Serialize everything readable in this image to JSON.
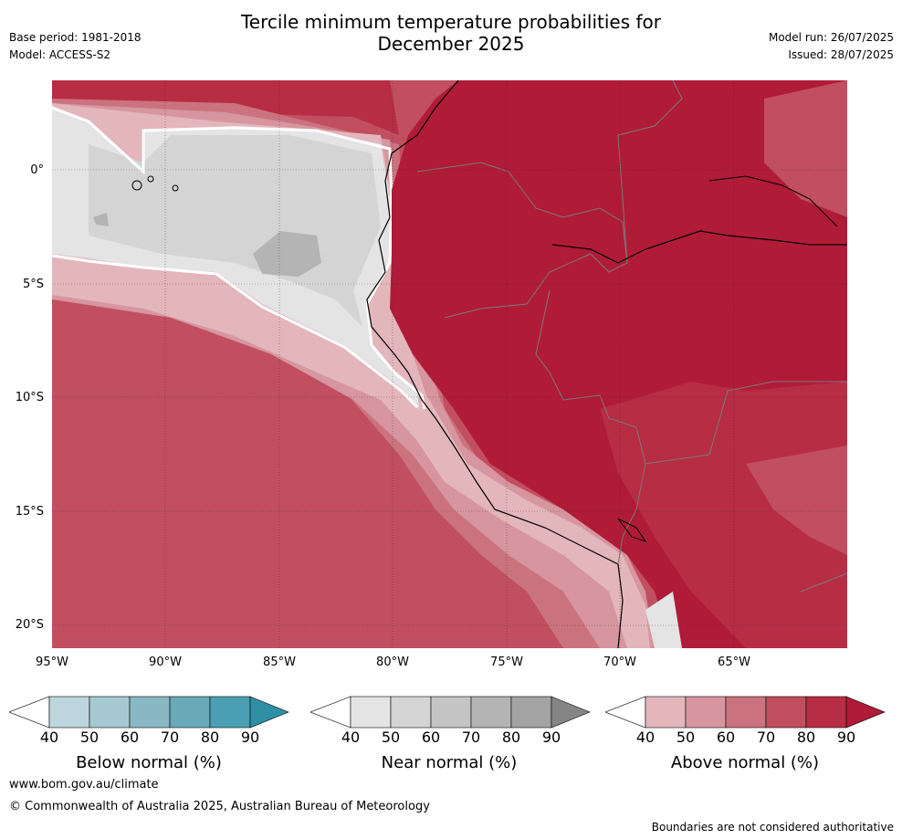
{
  "title_line1": "Tercile minimum temperature probabilities for",
  "title_line2": "December 2025",
  "base_period": "Base period: 1981-2018",
  "model": "Model: ACCESS-S2",
  "model_run": "Model run: 26/07/2025",
  "issued": "Issued: 28/07/2025",
  "lat_labels": [
    "0°",
    "5°S",
    "10°S",
    "15°S",
    "20°S"
  ],
  "lon_labels": [
    "95°W",
    "90°W",
    "85°W",
    "80°W",
    "75°W",
    "70°W",
    "65°W"
  ],
  "colorbars": {
    "below": {
      "label": "Below normal (%)",
      "ticks": [
        "40",
        "50",
        "60",
        "70",
        "80",
        "90"
      ],
      "colors": [
        "#ffffff",
        "#bdd6dd",
        "#a6c9d1",
        "#89b8c4",
        "#6aa9b7",
        "#4aa0b2",
        "#2f8fa4"
      ]
    },
    "near": {
      "label": "Near normal (%)",
      "ticks": [
        "40",
        "50",
        "60",
        "70",
        "80",
        "90"
      ],
      "colors": [
        "#ffffff",
        "#e4e4e4",
        "#d4d4d4",
        "#c4c4c4",
        "#b4b4b4",
        "#a3a3a3",
        "#858585"
      ]
    },
    "above": {
      "label": "Above normal (%)",
      "ticks": [
        "40",
        "50",
        "60",
        "70",
        "80",
        "90"
      ],
      "colors": [
        "#ffffff",
        "#e3b6bc",
        "#d6959f",
        "#ca737f",
        "#c14f5f",
        "#b72d44",
        "#b01b38"
      ]
    }
  },
  "website": "www.bom.gov.au/climate",
  "copyright": "© Commonwealth of Australia 2025, Australian Bureau of Meteorology",
  "disclaimer": "Boundaries are not considered authoritative"
}
